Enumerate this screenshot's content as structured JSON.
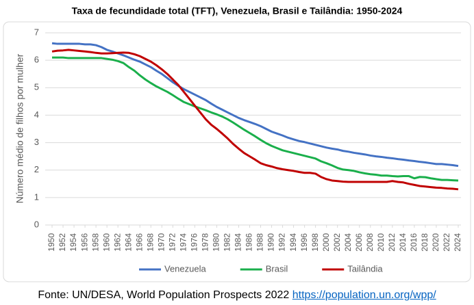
{
  "chart_data": {
    "type": "line",
    "title": "Taxa de fecundidade total (TFT), Venezuela, Brasil e Tailândia: 1950-2024",
    "y_label": "Número médio de filhos por mulher",
    "x": [
      1950,
      1951,
      1952,
      1953,
      1954,
      1955,
      1956,
      1957,
      1958,
      1959,
      1960,
      1961,
      1962,
      1963,
      1964,
      1965,
      1966,
      1967,
      1968,
      1969,
      1970,
      1971,
      1972,
      1973,
      1974,
      1975,
      1976,
      1977,
      1978,
      1979,
      1980,
      1981,
      1982,
      1983,
      1984,
      1985,
      1986,
      1987,
      1988,
      1989,
      1990,
      1991,
      1992,
      1993,
      1994,
      1995,
      1996,
      1997,
      1998,
      1999,
      2000,
      2001,
      2002,
      2003,
      2004,
      2005,
      2006,
      2007,
      2008,
      2009,
      2010,
      2011,
      2012,
      2013,
      2014,
      2015,
      2016,
      2017,
      2018,
      2019,
      2020,
      2021,
      2022,
      2023,
      2024
    ],
    "series": [
      {
        "name": "Venezuela",
        "color": "#4472c4",
        "values": [
          6.62,
          6.6,
          6.6,
          6.6,
          6.6,
          6.6,
          6.58,
          6.58,
          6.55,
          6.48,
          6.38,
          6.32,
          6.25,
          6.18,
          6.1,
          6.02,
          5.95,
          5.85,
          5.75,
          5.62,
          5.5,
          5.35,
          5.2,
          5.07,
          4.95,
          4.85,
          4.75,
          4.65,
          4.55,
          4.42,
          4.3,
          4.2,
          4.1,
          4.0,
          3.9,
          3.82,
          3.75,
          3.68,
          3.6,
          3.5,
          3.4,
          3.33,
          3.26,
          3.18,
          3.12,
          3.06,
          3.02,
          2.97,
          2.92,
          2.87,
          2.82,
          2.78,
          2.75,
          2.7,
          2.67,
          2.63,
          2.6,
          2.57,
          2.53,
          2.5,
          2.48,
          2.45,
          2.43,
          2.4,
          2.38,
          2.35,
          2.33,
          2.3,
          2.28,
          2.25,
          2.22,
          2.22,
          2.2,
          2.18,
          2.15
        ]
      },
      {
        "name": "Brasil",
        "color": "#1aaf4b",
        "values": [
          6.1,
          6.1,
          6.1,
          6.08,
          6.08,
          6.08,
          6.08,
          6.08,
          6.08,
          6.08,
          6.05,
          6.02,
          5.97,
          5.9,
          5.75,
          5.62,
          5.45,
          5.3,
          5.17,
          5.05,
          4.95,
          4.85,
          4.73,
          4.6,
          4.48,
          4.4,
          4.32,
          4.25,
          4.18,
          4.1,
          4.03,
          3.95,
          3.85,
          3.73,
          3.6,
          3.47,
          3.35,
          3.23,
          3.1,
          2.98,
          2.88,
          2.8,
          2.72,
          2.67,
          2.62,
          2.57,
          2.52,
          2.47,
          2.42,
          2.32,
          2.25,
          2.17,
          2.08,
          2.02,
          2.0,
          1.97,
          1.92,
          1.88,
          1.85,
          1.83,
          1.8,
          1.8,
          1.78,
          1.77,
          1.78,
          1.78,
          1.7,
          1.75,
          1.74,
          1.7,
          1.67,
          1.64,
          1.64,
          1.63,
          1.62
        ]
      },
      {
        "name": "Tailândia",
        "color": "#c00000",
        "values": [
          6.32,
          6.35,
          6.36,
          6.38,
          6.36,
          6.34,
          6.32,
          6.3,
          6.27,
          6.25,
          6.25,
          6.26,
          6.27,
          6.28,
          6.27,
          6.22,
          6.15,
          6.05,
          5.95,
          5.82,
          5.67,
          5.5,
          5.3,
          5.1,
          4.85,
          4.6,
          4.35,
          4.1,
          3.85,
          3.65,
          3.5,
          3.33,
          3.15,
          2.95,
          2.78,
          2.62,
          2.5,
          2.38,
          2.25,
          2.18,
          2.13,
          2.07,
          2.03,
          2.0,
          1.97,
          1.93,
          1.9,
          1.9,
          1.87,
          1.75,
          1.67,
          1.62,
          1.6,
          1.58,
          1.57,
          1.57,
          1.57,
          1.57,
          1.57,
          1.57,
          1.57,
          1.57,
          1.6,
          1.57,
          1.55,
          1.5,
          1.46,
          1.42,
          1.4,
          1.38,
          1.36,
          1.35,
          1.33,
          1.32,
          1.3
        ]
      }
    ],
    "xlim": [
      1950,
      2024
    ],
    "xticks": [
      1950,
      1952,
      1954,
      1956,
      1958,
      1960,
      1962,
      1964,
      1966,
      1968,
      1970,
      1972,
      1974,
      1976,
      1978,
      1980,
      1982,
      1984,
      1986,
      1988,
      1990,
      1992,
      1994,
      1996,
      1998,
      2000,
      2002,
      2004,
      2006,
      2008,
      2010,
      2012,
      2014,
      2016,
      2018,
      2020,
      2022,
      2024
    ],
    "ylim": [
      0,
      7
    ],
    "yticks": [
      0,
      1,
      2,
      3,
      4,
      5,
      6,
      7
    ],
    "grid": true,
    "legend": "bottom"
  },
  "footer": {
    "source": "Fonte: UN/DESA, World Population Prospects 2022",
    "link": "https://population.un.org/wpp/"
  }
}
